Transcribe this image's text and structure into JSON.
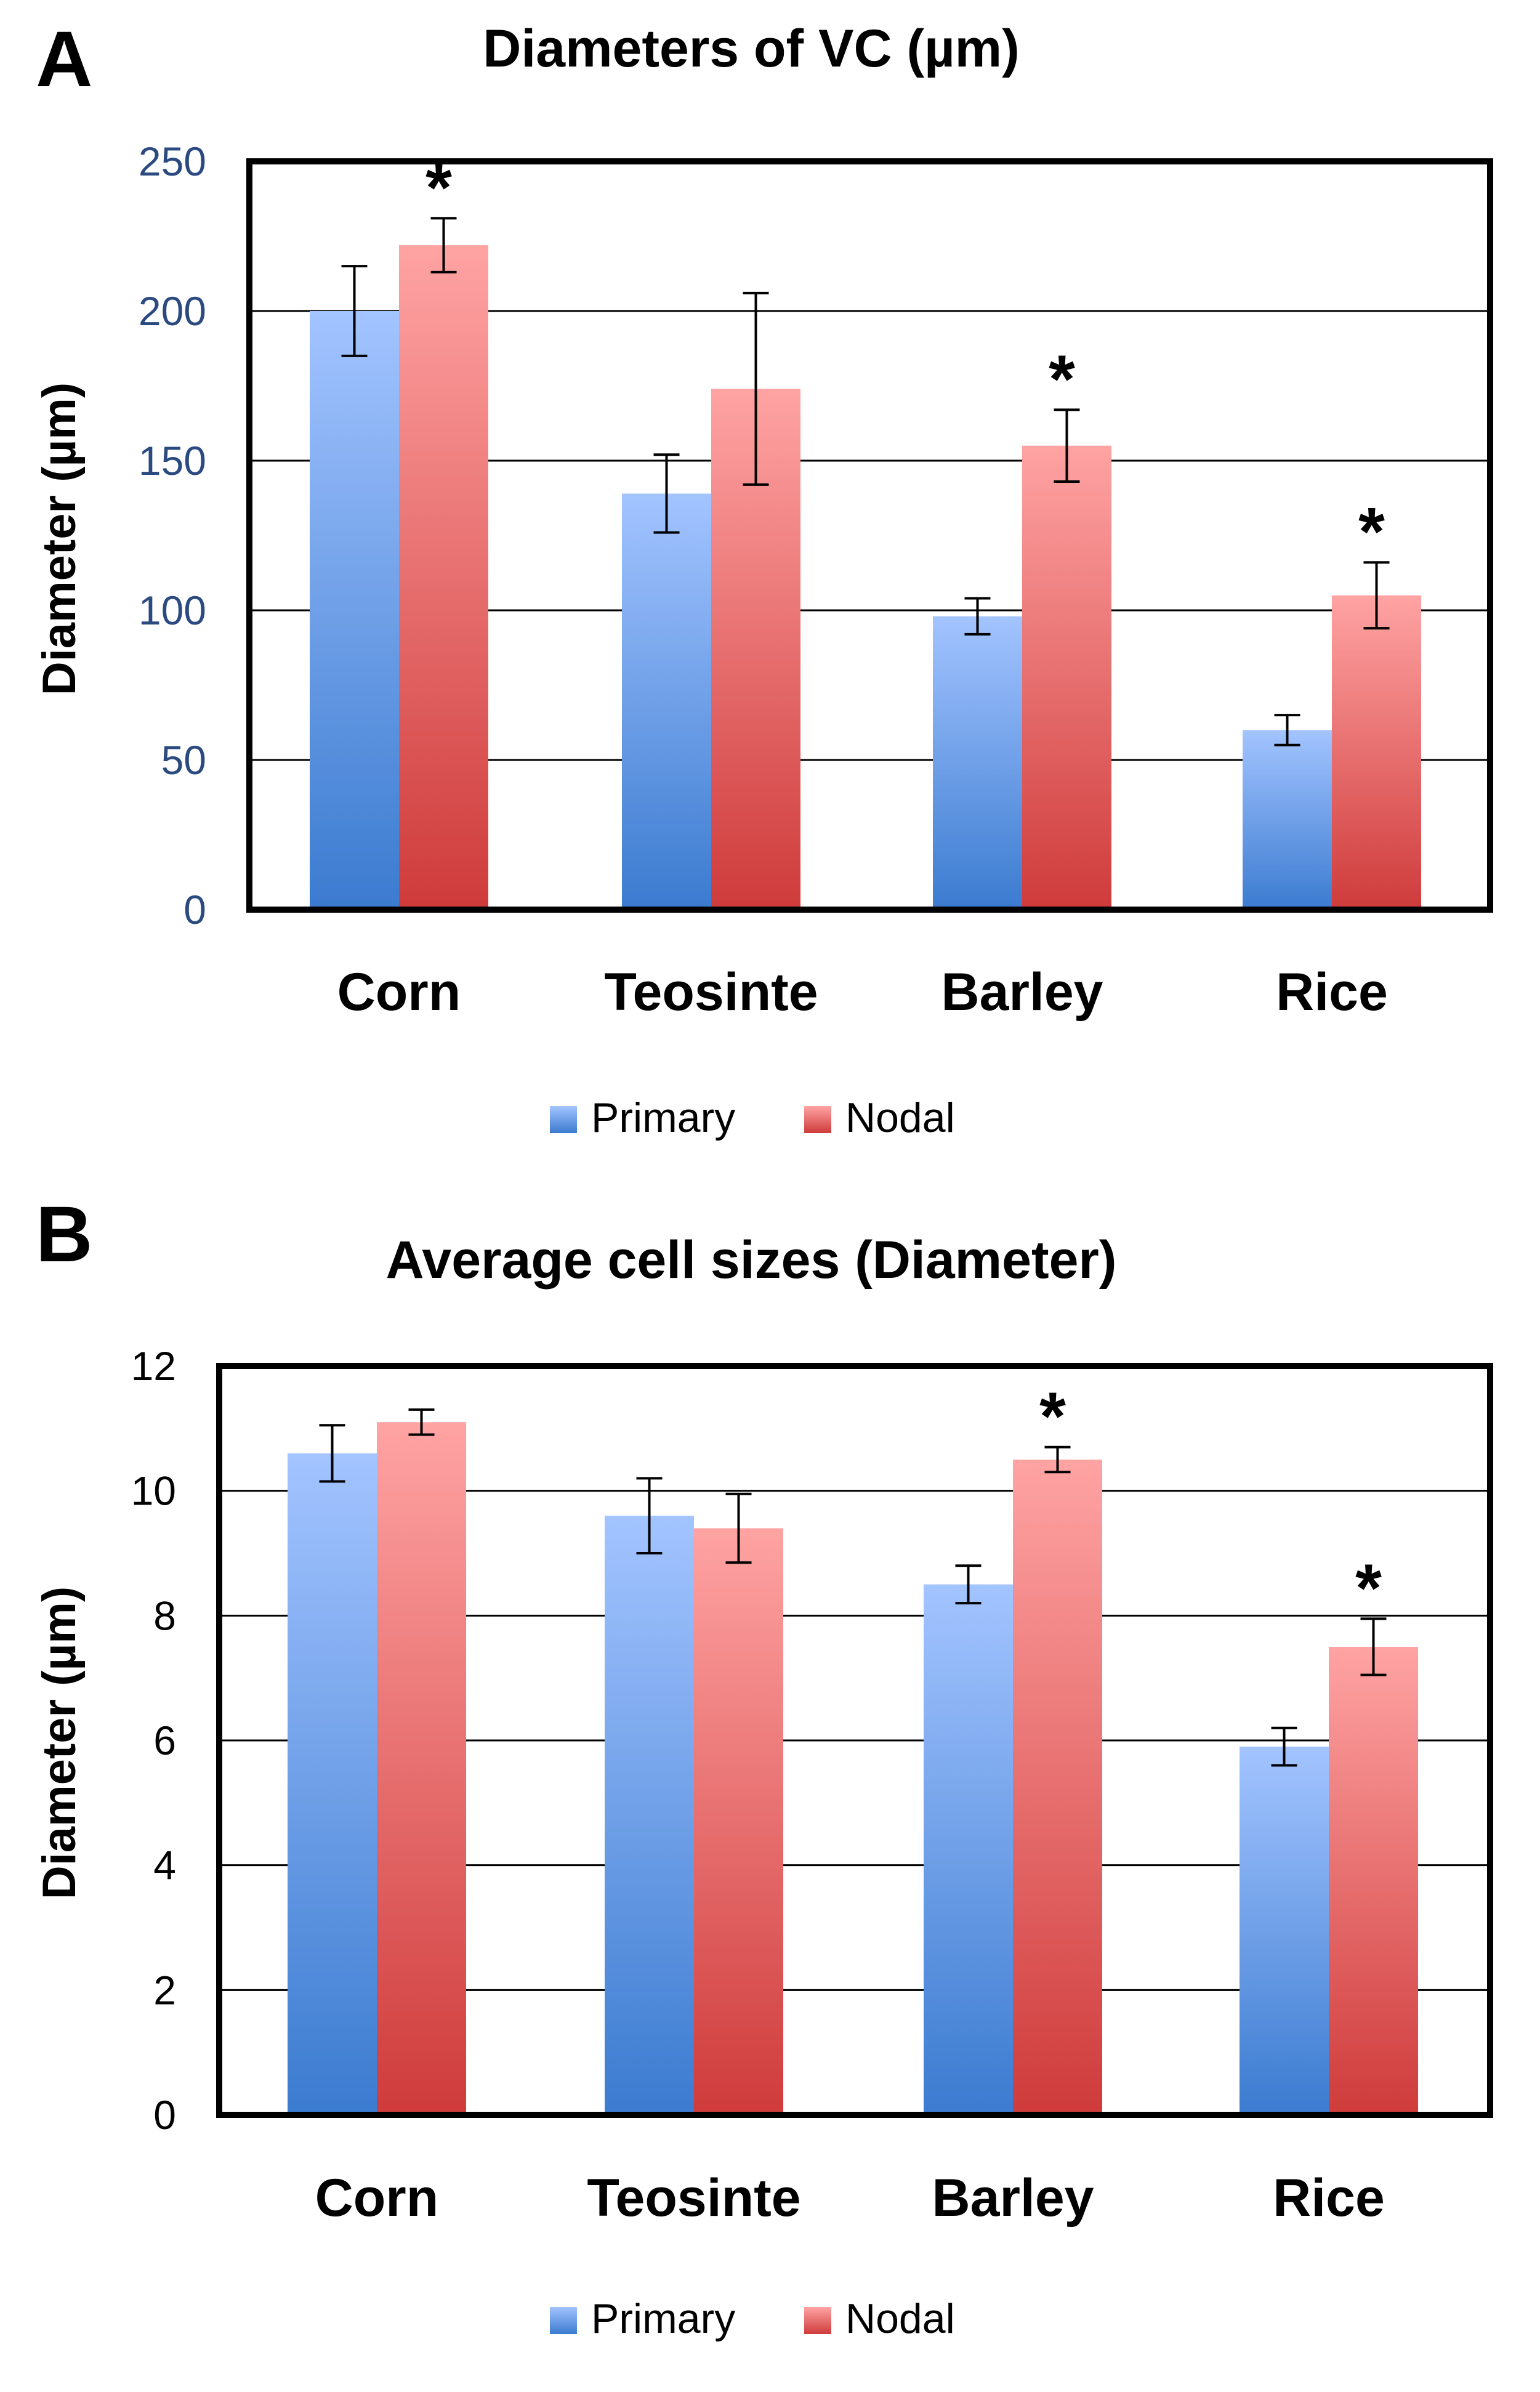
{
  "colors": {
    "primary_top": "#a3c4ff",
    "primary_bottom": "#3b7bd0",
    "nodal_top": "#ffa3a3",
    "nodal_bottom": "#cf3b3b",
    "axis_tick_a": "#2a4a80",
    "axis_tick_b": "#000000"
  },
  "chart_data": [
    {
      "panel_label": "A",
      "type": "bar",
      "title": "Diameters of VC (µm)",
      "xlabel": "",
      "ylabel": "Diameter (µm)",
      "ylim": [
        0,
        250
      ],
      "yticks": [
        0,
        50,
        100,
        150,
        200,
        250
      ],
      "categories": [
        "Corn",
        "Teosinte",
        "Barley",
        "Rice"
      ],
      "series": [
        {
          "name": "Primary",
          "values": [
            200,
            139,
            98,
            60
          ],
          "errors": [
            15,
            13,
            6,
            5
          ]
        },
        {
          "name": "Nodal",
          "values": [
            222,
            174,
            155,
            105
          ],
          "errors": [
            9,
            32,
            12,
            11
          ]
        }
      ],
      "significance": [
        {
          "category": "Corn",
          "series": "Nodal",
          "label": "*"
        },
        {
          "category": "Barley",
          "series": "Nodal",
          "label": "*"
        },
        {
          "category": "Rice",
          "series": "Nodal",
          "label": "*"
        }
      ],
      "grid": true,
      "legend": "bottom"
    },
    {
      "panel_label": "B",
      "type": "bar",
      "title": "Average cell sizes (Diameter)",
      "xlabel": "",
      "ylabel": "Diameter (µm)",
      "ylim": [
        0,
        12
      ],
      "yticks": [
        0,
        2,
        4,
        6,
        8,
        10,
        12
      ],
      "categories": [
        "Corn",
        "Teosinte",
        "Barley",
        "Rice"
      ],
      "series": [
        {
          "name": "Primary",
          "values": [
            10.6,
            9.6,
            8.5,
            5.9
          ],
          "errors": [
            0.45,
            0.6,
            0.3,
            0.3
          ]
        },
        {
          "name": "Nodal",
          "values": [
            11.1,
            9.4,
            10.5,
            7.5
          ],
          "errors": [
            0.2,
            0.55,
            0.2,
            0.45
          ]
        }
      ],
      "significance": [
        {
          "category": "Barley",
          "series": "Nodal",
          "label": "*"
        },
        {
          "category": "Rice",
          "series": "Nodal",
          "label": "*"
        }
      ],
      "grid": true,
      "legend": "bottom"
    }
  ]
}
